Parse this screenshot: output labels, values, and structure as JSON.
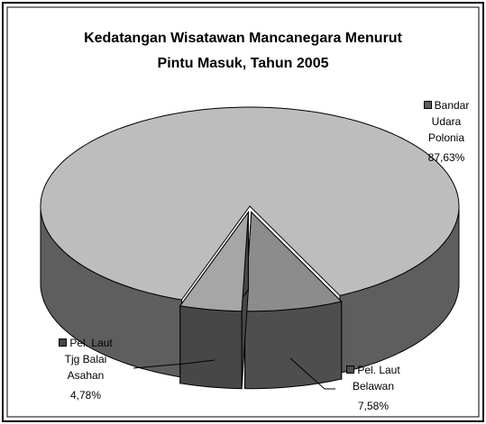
{
  "chart_data": {
    "type": "pie3d",
    "title": [
      "Kedatangan Wisatawan Mancanegara Menurut",
      "Pintu Masuk, Tahun 2005"
    ],
    "categories": [
      "Bandar Udara Polonia",
      "Pel. Laut Belawan",
      "Pel. Laut Tjg Balai Asahan"
    ],
    "values": [
      87.63,
      7.58,
      4.78
    ],
    "value_labels": [
      "87,63%",
      "7,58%",
      "4,78%"
    ],
    "colors": [
      "#bdbdbd",
      "#8c8c8c",
      "#a6a6a6"
    ],
    "side_colors": [
      "#5e5e5e",
      "#4e4e4e",
      "#474747"
    ]
  }
}
